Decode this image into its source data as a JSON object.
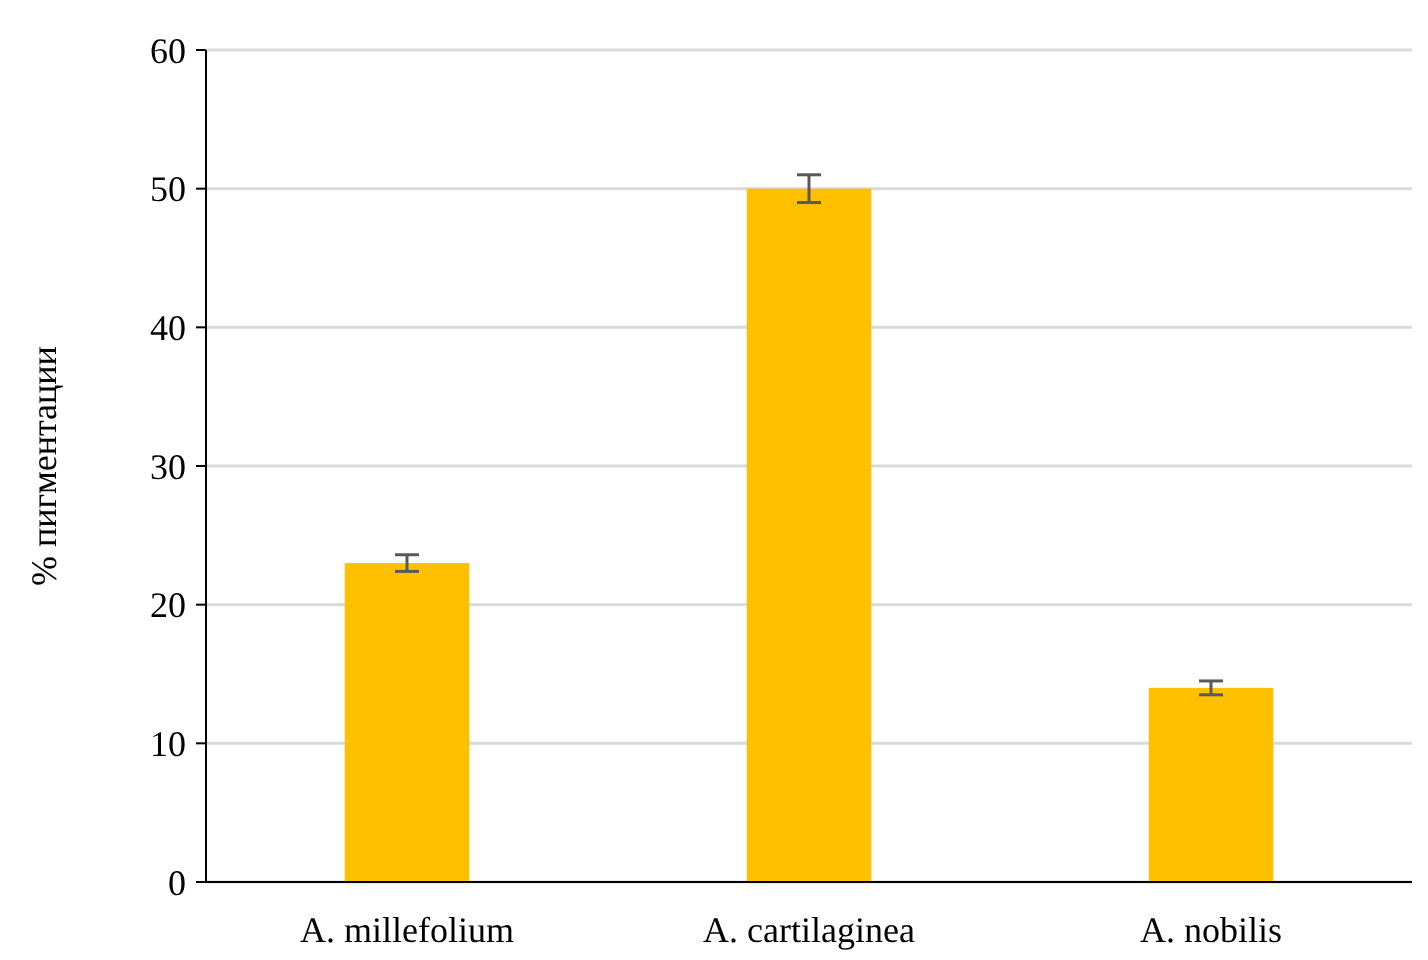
{
  "chart_data": {
    "type": "bar",
    "ylabel": "% пигментации",
    "categories": [
      "A. millefolium",
      "A. cartilaginea",
      "A. nobilis"
    ],
    "values": [
      23,
      50,
      14
    ],
    "errors": [
      0.6,
      1.0,
      0.5
    ],
    "color": "#ffc000",
    "ylim": [
      0,
      60
    ],
    "yticks": [
      0,
      10,
      20,
      30,
      40,
      50,
      60
    ],
    "grid": "y"
  }
}
